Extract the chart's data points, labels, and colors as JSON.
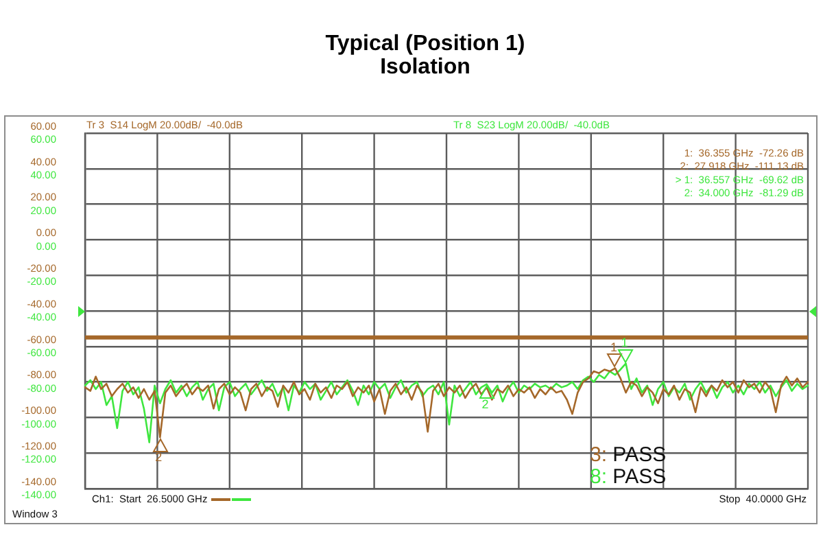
{
  "chart_data": {
    "type": "line",
    "title": "Typical (Position 1)",
    "subtitle": "Isolation",
    "categories": [
      null,
      null,
      null,
      null,
      null,
      null,
      null,
      null,
      null,
      null,
      null,
      null,
      null,
      null,
      null,
      null,
      null,
      null,
      null,
      null,
      null,
      null,
      null,
      null,
      null,
      null,
      null,
      null,
      null,
      null,
      null,
      null,
      null,
      null,
      null,
      null,
      null,
      null,
      null,
      null,
      null,
      null,
      null,
      null,
      null,
      null,
      null,
      null,
      null,
      null,
      null,
      null,
      null,
      null,
      null,
      null,
      null,
      null,
      null,
      null,
      null,
      null,
      null,
      null,
      null,
      null,
      null,
      null,
      null,
      null,
      null,
      null,
      null,
      null,
      null,
      null,
      null,
      null,
      null,
      null,
      null,
      null,
      null,
      null,
      null,
      null,
      null,
      null,
      null,
      null,
      null,
      null,
      null,
      null,
      null,
      null,
      null,
      null,
      null,
      null,
      null,
      null,
      null,
      null,
      null,
      null,
      null,
      null,
      null,
      null,
      null,
      null,
      null,
      null,
      null,
      null,
      null,
      null,
      null,
      null,
      null,
      null,
      null,
      null,
      null,
      null,
      null,
      null,
      null,
      null,
      null,
      null,
      null,
      null,
      null,
      null
    ],
    "ylim": [
      -140,
      60
    ],
    "yticks": [
      {
        "value": 60,
        "label": "60.00"
      },
      {
        "value": 40,
        "label": "40.00"
      },
      {
        "value": 20,
        "label": "20.00"
      },
      {
        "value": 0,
        "label": "0.00"
      },
      {
        "value": -20,
        "label": "-20.00"
      },
      {
        "value": -40,
        "label": "-40.00"
      },
      {
        "value": -60,
        "label": "-60.00"
      },
      {
        "value": -80,
        "label": "-80.00"
      },
      {
        "value": -100,
        "label": "-100.00"
      },
      {
        "value": -120,
        "label": "-120.00"
      },
      {
        "value": -140,
        "label": "-140.00"
      }
    ],
    "y2lim": [
      -140,
      60
    ],
    "y2ticks": [
      {
        "value": 60,
        "label": "60.00"
      },
      {
        "value": 40,
        "label": "40.00"
      },
      {
        "value": 20,
        "label": "20.00"
      },
      {
        "value": 0,
        "label": "0.00"
      },
      {
        "value": -20,
        "label": "-20.00"
      },
      {
        "value": -40,
        "label": "-40.00"
      },
      {
        "value": -60,
        "label": "-60.00"
      },
      {
        "value": -80,
        "label": "-80.00"
      },
      {
        "value": -100,
        "label": "-100.00"
      },
      {
        "value": -120,
        "label": "-120.00"
      },
      {
        "value": -140,
        "label": "-140.00"
      }
    ],
    "grid": true,
    "ref_lines": [
      {
        "axis": "y",
        "value": -55,
        "color": "#a5682a"
      }
    ],
    "annotations": [
      "Ch1:  Start  26.5000 GHz",
      "Stop  40.0000 GHz",
      "Window 3",
      "1:  36.355 GHz  -72.26 dB",
      "2:  27.918 GHz  -111.13 dB",
      "> 1:  36.557 GHz  -69.62 dB",
      "2:  34.000 GHz  -81.29 dB",
      "3: PASS",
      "8: PASS",
      {
        "text": "1",
        "y": -72.26
      },
      {
        "text": "2",
        "y": -111.13
      },
      {
        "text": "1",
        "y": -69.62
      },
      {
        "text": "2",
        "y": -81.29
      }
    ],
    "series": [
      {
        "name": "Tr 3  S14 LogM 20.00dB/  -40.0dB",
        "color": "#a5682a",
        "values": [
          -83,
          -85,
          -77,
          -84,
          -81,
          -88,
          -84,
          -81,
          -86,
          -83,
          -89,
          -84,
          -90,
          -85,
          -111.13,
          -86,
          -82,
          -88,
          -84,
          -81,
          -87,
          -83,
          -85,
          -82,
          -95,
          -84,
          -81,
          -87,
          -83,
          -86,
          -96,
          -84,
          -81,
          -88,
          -83,
          -85,
          -94,
          -82,
          -86,
          -80,
          -87,
          -84,
          -90,
          -81,
          -86,
          -83,
          -89,
          -82,
          -84,
          -80,
          -88,
          -83,
          -86,
          -82,
          -91,
          -84,
          -98,
          -85,
          -81,
          -87,
          -83,
          -90,
          -82,
          -86,
          -108,
          -85,
          -81,
          -88,
          -83,
          -86,
          -82,
          -89,
          -84,
          -81,
          -87,
          -83,
          -90,
          -84,
          -86,
          -82,
          -88,
          -84,
          -86,
          -83,
          -89,
          -84,
          -87,
          -83,
          -86,
          -85,
          -90,
          -98,
          -86,
          -80,
          -78,
          -74,
          -75,
          -73,
          -74,
          -72.26,
          -78,
          -86,
          -80,
          -82,
          -88,
          -83,
          -86,
          -92,
          -84,
          -87,
          -82,
          -90,
          -84,
          -86,
          -97,
          -83,
          -88,
          -82,
          -85,
          -79,
          -83,
          -80,
          -86,
          -79,
          -83,
          -81,
          -86,
          -80,
          -84,
          -97,
          -82,
          -77,
          -82,
          -78,
          -83,
          -80
        ]
      },
      {
        "name": "Tr 8  S23 LogM 20.00dB/  -40.0dB",
        "color": "#3fe63f",
        "axis": "y2",
        "values": [
          -82,
          -79,
          -84,
          -80,
          -93,
          -88,
          -106,
          -85,
          -80,
          -87,
          -83,
          -95,
          -114,
          -82,
          -92,
          -84,
          -79,
          -86,
          -82,
          -88,
          -83,
          -80,
          -90,
          -84,
          -81,
          -96,
          -83,
          -80,
          -88,
          -84,
          -81,
          -87,
          -83,
          -79,
          -85,
          -81,
          -88,
          -83,
          -96,
          -82,
          -86,
          -80,
          -84,
          -81,
          -90,
          -85,
          -80,
          -87,
          -83,
          -79,
          -85,
          -93,
          -82,
          -87,
          -80,
          -84,
          -81,
          -89,
          -83,
          -79,
          -86,
          -82,
          -80,
          -88,
          -84,
          -82,
          -87,
          -80,
          -104,
          -82,
          -88,
          -84,
          -80,
          -87,
          -83,
          -81.29,
          -86,
          -82,
          -91,
          -84,
          -80,
          -86,
          -82,
          -84,
          -81,
          -83,
          -82,
          -84,
          -81,
          -83,
          -82,
          -80,
          -84,
          -79,
          -77,
          -80,
          -76,
          -78,
          -74,
          -76,
          -73,
          -69.62,
          -84,
          -78,
          -86,
          -82,
          -93,
          -84,
          -80,
          -88,
          -83,
          -86,
          -81,
          -90,
          -84,
          -80,
          -86,
          -82,
          -89,
          -83,
          -80,
          -86,
          -82,
          -87,
          -81,
          -84,
          -80,
          -86,
          -82,
          -88,
          -83,
          -79,
          -85,
          -81,
          -84,
          -82
        ]
      }
    ]
  }
}
